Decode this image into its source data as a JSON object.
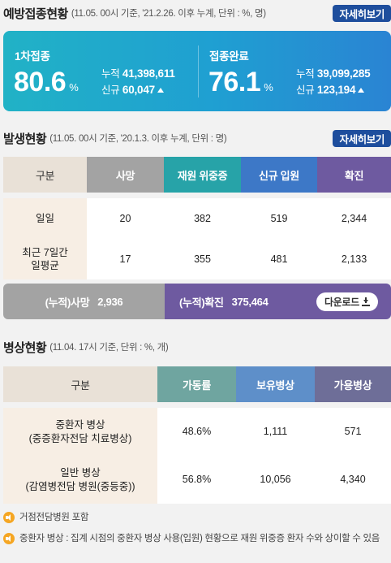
{
  "vaccination": {
    "title": "예방접종현황",
    "note": "(11.05. 00시 기준, '21.2.26. 이후 누계, 단위 : %, 명)",
    "more_label": "자세히보기",
    "first": {
      "label": "1차접종",
      "rate": "80.6",
      "unit": "%",
      "cum_label": "누적",
      "cum_value": "41,398,611",
      "new_label": "신규",
      "new_value": "60,047"
    },
    "complete": {
      "label": "접종완료",
      "rate": "76.1",
      "unit": "%",
      "cum_label": "누적",
      "cum_value": "39,099,285",
      "new_label": "신규",
      "new_value": "123,194"
    },
    "colors": {
      "gradient_start": "#21b2c6",
      "gradient_end": "#2a84d3"
    }
  },
  "outbreak": {
    "title": "발생현황",
    "note": "(11.05. 00시 기준, '20.1.3. 이후 누계, 단위 : 명)",
    "more_label": "자세히보기",
    "headers": [
      "구분",
      "사망",
      "재원 위중증",
      "신규 입원",
      "확진"
    ],
    "header_colors": [
      "#e9e1d7",
      "#a3a3a3",
      "#27a3a8",
      "#3d78c7",
      "#6e5aa0"
    ],
    "rows": [
      {
        "label": "일일",
        "values": [
          "20",
          "382",
          "519",
          "2,344"
        ]
      },
      {
        "label_lines": [
          "최근 7일간",
          "일평균"
        ],
        "values": [
          "17",
          "355",
          "481",
          "2,133"
        ]
      }
    ],
    "summary": {
      "death_label": "(누적)사망",
      "death_value": "2,936",
      "confirmed_label": "(누적)확진",
      "confirmed_value": "375,464",
      "download_label": "다운로드"
    }
  },
  "beds": {
    "title": "병상현황",
    "note": "(11.04. 17시 기준, 단위 : %, 개)",
    "headers": [
      "구분",
      "가동률",
      "보유병상",
      "가용병상"
    ],
    "header_colors": [
      "#e9e1d7",
      "#6fa5a0",
      "#5e8fc9",
      "#6e6e98"
    ],
    "rows": [
      {
        "label_lines": [
          "중환자 병상",
          "(중증환자전담 치료병상)"
        ],
        "values": [
          "48.6%",
          "1,111",
          "571"
        ]
      },
      {
        "label_lines": [
          "일반 병상",
          "(감염병전담 병원(중등중))"
        ],
        "values": [
          "56.8%",
          "10,056",
          "4,340"
        ]
      }
    ]
  },
  "notes": [
    "거점전담병원 포함",
    "중환자 병상 : 집계 시점의 중환자 병상 사용(입원) 현황으로 재원 위중증 환자 수와 상이할 수 있음"
  ]
}
